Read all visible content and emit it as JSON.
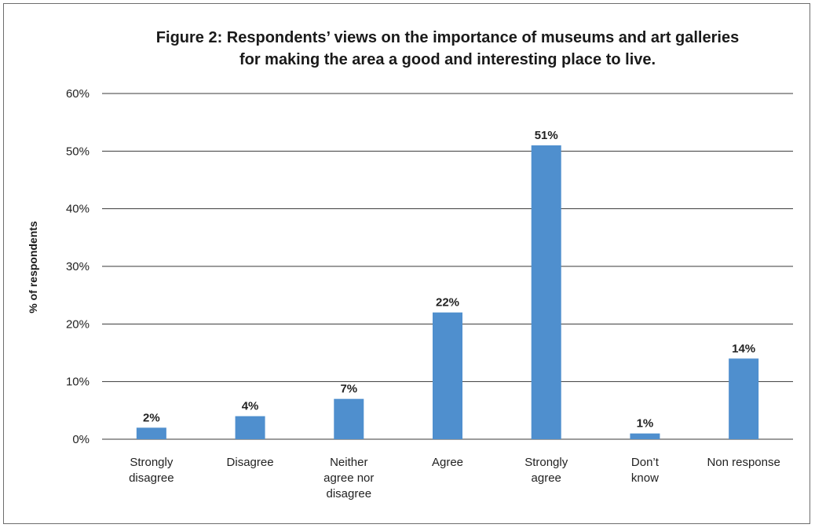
{
  "chart_data": {
    "type": "bar",
    "title_lines": [
      "Figure 2: Respondents’ views on the importance of museums and art galleries",
      "for making the area a good and interesting place to live."
    ],
    "xlabel": "",
    "ylabel": "% of respondents",
    "ylim": [
      0,
      60
    ],
    "yticks": [
      "0%",
      "10%",
      "20%",
      "30%",
      "40%",
      "50%",
      "60%"
    ],
    "grid": true,
    "categories": [
      [
        "Strongly",
        "disagree"
      ],
      [
        "Disagree"
      ],
      [
        "Neither",
        "agree nor",
        "disagree"
      ],
      [
        "Agree"
      ],
      [
        "Strongly",
        "agree"
      ],
      [
        "Don’t",
        "know"
      ],
      [
        "Non response"
      ]
    ],
    "values": [
      2,
      4,
      7,
      22,
      51,
      1,
      14
    ],
    "data_labels": [
      "2%",
      "4%",
      "7%",
      "22%",
      "51%",
      "1%",
      "14%"
    ],
    "bar_color": "#4f8fce",
    "grid_color": "#3a3a3a"
  }
}
